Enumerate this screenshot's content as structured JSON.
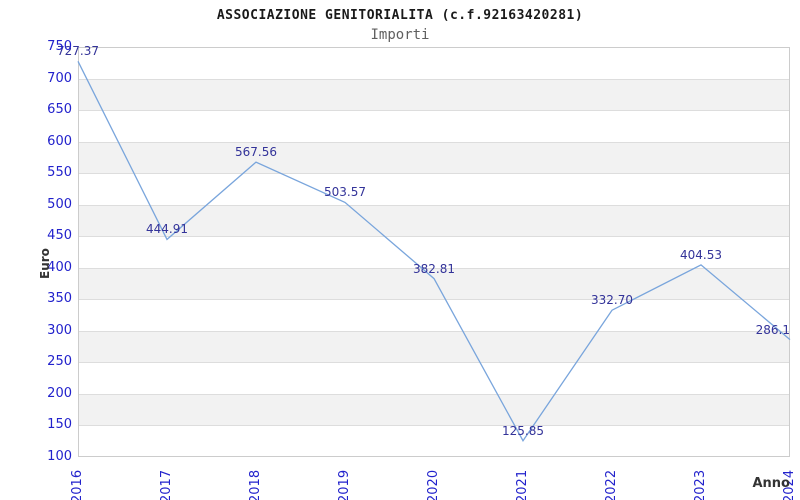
{
  "header": {
    "title": "ASSOCIAZIONE GENITORIALITA (c.f.92163420281)",
    "subtitle": "Importi"
  },
  "chart_data": {
    "type": "line",
    "title": "ASSOCIAZIONE GENITORIALITA (c.f.92163420281)",
    "subtitle": "Importi",
    "xlabel": "Anno",
    "ylabel": "Euro",
    "categories": [
      "2016",
      "2017",
      "2018",
      "2019",
      "2020",
      "2021",
      "2022",
      "2023",
      "2024"
    ],
    "values": [
      727.37,
      444.91,
      567.56,
      503.57,
      382.81,
      125.85,
      332.7,
      404.53,
      286.1
    ],
    "point_labels": [
      "727.37",
      "444.91",
      "567.56",
      "503.57",
      "382.81",
      "125.85",
      "332.70",
      "404.53",
      "286.1"
    ],
    "ylim": [
      100,
      750
    ],
    "ytick_step": 50,
    "grid": true,
    "alternating_bands": true,
    "legend_position": "none",
    "colors": {
      "line": "#79a5dc",
      "tick_label": "#2222cc",
      "point_label": "#333399",
      "grid_line": "#dddddd",
      "band_fill": "#f2f2f2",
      "plot_border": "#cccccc",
      "title": "#1a1a1a",
      "subtitle": "#5f5f5f",
      "axis_title": "#333333"
    }
  }
}
